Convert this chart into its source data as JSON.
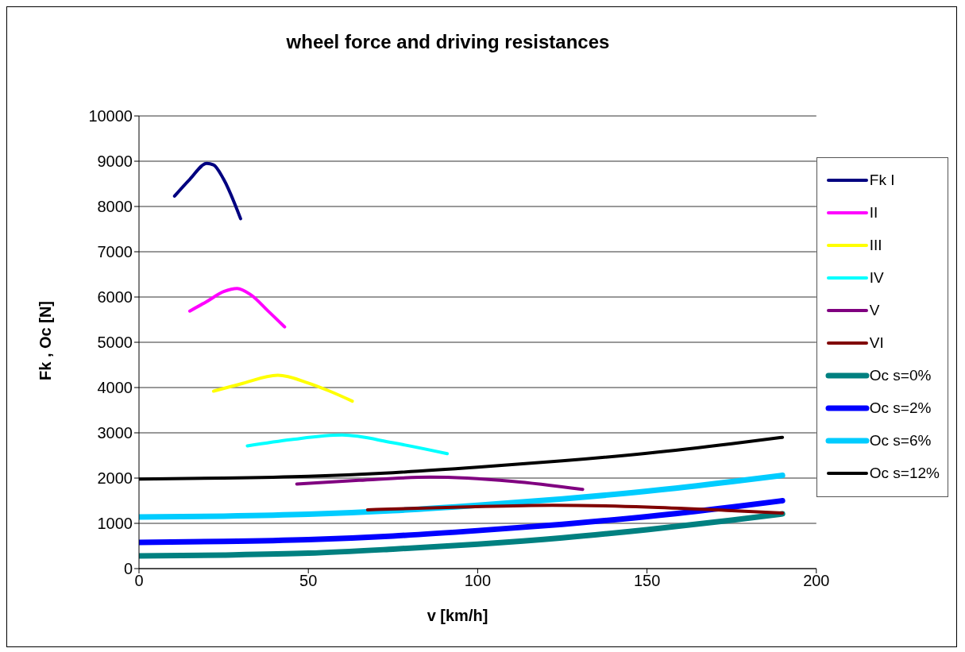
{
  "chart_data": {
    "type": "line",
    "title": "wheel force and driving resistances",
    "xlabel": "v [km/h]",
    "ylabel": "Fk , Oc [N]",
    "xlim": [
      0,
      200
    ],
    "xticks": [
      0,
      50,
      100,
      150,
      200
    ],
    "ylim": [
      0,
      10000
    ],
    "yticks": [
      0,
      1000,
      2000,
      3000,
      4000,
      5000,
      6000,
      7000,
      8000,
      9000,
      10000
    ],
    "grid": "y",
    "legend": "right",
    "marker": "none",
    "line_style": "solid",
    "series": [
      {
        "name": "Fk I",
        "color": "#000080",
        "x": [
          10.5,
          15,
          20,
          22,
          25,
          30
        ],
        "values": [
          8230,
          8600,
          8950,
          8920,
          8600,
          7730
        ]
      },
      {
        "name": "II",
        "color": "#ff00ff",
        "x": [
          15,
          20,
          25,
          29,
          33,
          38,
          43
        ],
        "values": [
          5690,
          5900,
          6120,
          6190,
          6050,
          5700,
          5340
        ]
      },
      {
        "name": "III",
        "color": "#ffff00",
        "x": [
          22,
          30,
          41,
          50,
          56,
          63
        ],
        "values": [
          3920,
          4080,
          4270,
          4100,
          3930,
          3700
        ]
      },
      {
        "name": "IV",
        "color": "#00ffff",
        "x": [
          32,
          45,
          60,
          75,
          91
        ],
        "values": [
          2710,
          2850,
          2950,
          2780,
          2540
        ]
      },
      {
        "name": "V",
        "color": "#800080",
        "x": [
          46.6,
          65,
          86,
          110,
          131
        ],
        "values": [
          1870,
          1950,
          2020,
          1930,
          1750
        ]
      },
      {
        "name": "VI",
        "color": "#800000",
        "x": [
          67.5,
          95,
          122,
          150,
          175,
          190
        ],
        "values": [
          1300,
          1360,
          1400,
          1360,
          1280,
          1230
        ]
      },
      {
        "name": "Oc s=0%",
        "color": "#008080",
        "x": [
          0,
          25,
          50,
          75,
          100,
          125,
          150,
          175,
          190
        ],
        "values": [
          280,
          300,
          340,
          430,
          540,
          680,
          860,
          1070,
          1210
        ]
      },
      {
        "name": "Oc s=2%",
        "color": "#0000ff",
        "x": [
          0,
          25,
          50,
          75,
          100,
          125,
          150,
          175,
          190
        ],
        "values": [
          580,
          600,
          640,
          720,
          840,
          980,
          1150,
          1360,
          1500
        ]
      },
      {
        "name": "Oc s=6%",
        "color": "#00ccff",
        "x": [
          0,
          25,
          50,
          75,
          100,
          125,
          150,
          175,
          190
        ],
        "values": [
          1140,
          1160,
          1200,
          1280,
          1400,
          1540,
          1710,
          1920,
          2060
        ]
      },
      {
        "name": "Oc s=12%",
        "color": "#000000",
        "x": [
          0,
          25,
          50,
          75,
          100,
          125,
          150,
          175,
          190
        ],
        "values": [
          1980,
          2000,
          2040,
          2120,
          2240,
          2380,
          2550,
          2760,
          2900
        ]
      }
    ]
  }
}
